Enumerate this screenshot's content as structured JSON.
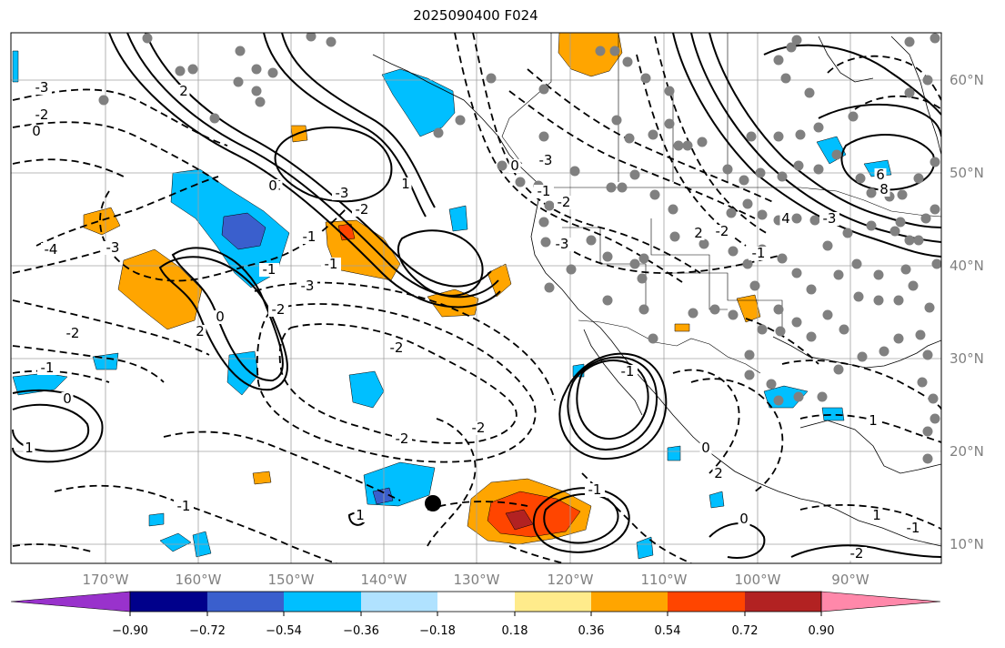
{
  "title": "2025090400 F024",
  "map": {
    "lat_labels": [
      "60°N",
      "50°N",
      "40°N",
      "30°N",
      "20°N",
      "10°N"
    ],
    "lon_labels": [
      "170°W",
      "160°W",
      "150°W",
      "140°W",
      "130°W",
      "120°W",
      "110°W",
      "100°W",
      "90°W"
    ]
  },
  "colorbar": {
    "tick_labels": [
      "−0.90",
      "−0.72",
      "−0.54",
      "−0.36",
      "−0.18",
      "0.18",
      "0.36",
      "0.54",
      "0.72",
      "0.90"
    ],
    "colors": [
      "#9932cc",
      "#00008b",
      "#3a5fcd",
      "#00bfff",
      "#b0e2ff",
      "#ffffff",
      "#ffeb8b",
      "#ffa500",
      "#ff4500",
      "#b22222",
      "#ff88aa"
    ]
  },
  "contour_labels": [
    "-3",
    "2",
    "-2",
    "0",
    "-4",
    "-3",
    "-2",
    "-1",
    "0",
    "1",
    "-1",
    "4",
    "-3",
    "-2",
    "-1",
    "-3",
    "-2",
    "-1",
    "0",
    "2",
    "-2",
    "-1",
    "0",
    "1",
    "-2",
    "-2",
    "-3",
    "-3",
    "-2",
    "-1",
    "0",
    "8",
    "6",
    "4",
    "-3",
    "2",
    "-2",
    "-1",
    "0",
    "2",
    "1",
    "1",
    "-1",
    "0",
    "-2",
    "-1",
    "1",
    "-1"
  ]
}
